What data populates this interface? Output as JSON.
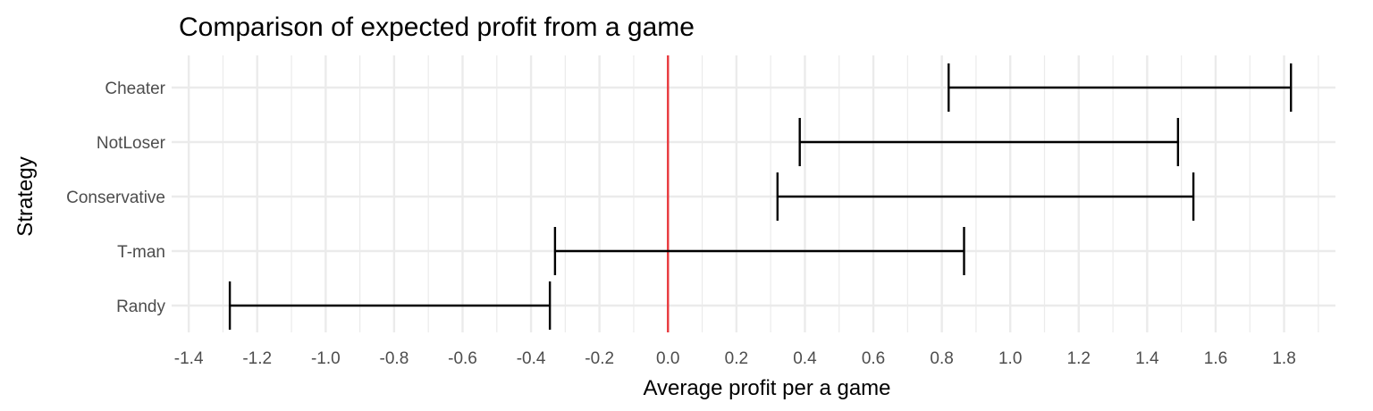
{
  "chart_data": {
    "type": "errorbar",
    "orientation": "horizontal",
    "title": "Comparison of expected profit from a game",
    "xlabel": "Average profit per a game",
    "ylabel": "Strategy",
    "xlim": [
      -1.45,
      1.95
    ],
    "x_ticks": [
      -1.4,
      -1.2,
      -1.0,
      -0.8,
      -0.6,
      -0.4,
      -0.2,
      0.0,
      0.2,
      0.4,
      0.6,
      0.8,
      1.0,
      1.2,
      1.4,
      1.6,
      1.8
    ],
    "x_tick_labels": [
      "-1.4",
      "-1.2",
      "-1.0",
      "-0.8",
      "-0.6",
      "-0.4",
      "-0.2",
      "0.0",
      "0.2",
      "0.4",
      "0.6",
      "0.8",
      "1.0",
      "1.2",
      "1.4",
      "1.6",
      "1.8"
    ],
    "categories": [
      "Cheater",
      "NotLoser",
      "Conservative",
      "T-man",
      "Randy"
    ],
    "intervals": [
      {
        "category": "Cheater",
        "low": 0.82,
        "high": 1.82
      },
      {
        "category": "NotLoser",
        "low": 0.385,
        "high": 1.49
      },
      {
        "category": "Conservative",
        "low": 0.32,
        "high": 1.535
      },
      {
        "category": "T-man",
        "low": -0.33,
        "high": 0.865
      },
      {
        "category": "Randy",
        "low": -1.28,
        "high": -0.345
      }
    ],
    "reference_line": {
      "x": 0.0,
      "color": "#e8393d"
    },
    "grid": true,
    "legend": "none",
    "colors": {
      "bars": "#000000",
      "grid": "#ebebeb",
      "reference": "#e8393d"
    }
  }
}
